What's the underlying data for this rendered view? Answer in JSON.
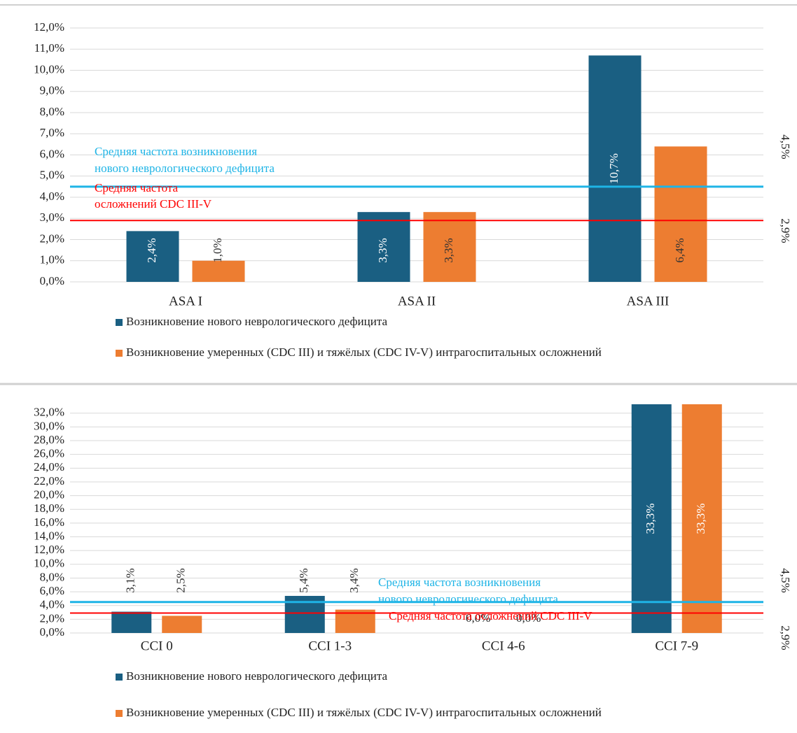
{
  "chart_data": [
    {
      "type": "bar",
      "categories": [
        "ASA I",
        "ASA II",
        "ASA III"
      ],
      "series": [
        {
          "name": "Возникновение нового неврологического дефицита",
          "color": "#1a5f82",
          "values": [
            2.4,
            3.3,
            10.7
          ],
          "value_labels": [
            "2,4%",
            "3,3%",
            "10,7%"
          ]
        },
        {
          "name": "Возникновение умеренных (CDC III) и тяжёлых (CDC IV-V) интрагоспитальных осложнений",
          "color": "#ed7d31",
          "values": [
            1.0,
            3.3,
            6.4
          ],
          "value_labels": [
            "1,0%",
            "3,3%",
            "6,4%"
          ]
        }
      ],
      "ylim": [
        0,
        12
      ],
      "yticks": [
        {
          "value": 0,
          "label": "0,0%"
        },
        {
          "value": 1,
          "label": "1,0%"
        },
        {
          "value": 2,
          "label": "2,0%"
        },
        {
          "value": 3,
          "label": "3,0%"
        },
        {
          "value": 4,
          "label": "4,0%"
        },
        {
          "value": 5,
          "label": "5,0%"
        },
        {
          "value": 6,
          "label": "6,0%"
        },
        {
          "value": 7,
          "label": "7,0%"
        },
        {
          "value": 8,
          "label": "8,0%"
        },
        {
          "value": 9,
          "label": "9,0%"
        },
        {
          "value": 10,
          "label": "10,0%"
        },
        {
          "value": 11,
          "label": "11,0%"
        },
        {
          "value": 12,
          "label": "12,0%"
        }
      ],
      "grid": true,
      "reference_lines": [
        {
          "value": 4.5,
          "value_label": "4,5%",
          "color": "#1eb4e6",
          "label_lines": [
            "Средняя частота возникновения",
            "нового неврологического дефицита"
          ]
        },
        {
          "value": 2.9,
          "value_label": "2,9%",
          "color": "#ff0000",
          "label_lines": [
            "Средняя частота",
            "осложнений CDC III-V"
          ]
        }
      ]
    },
    {
      "type": "bar",
      "categories": [
        "CCI 0",
        "CCI 1-3",
        "CCI 4-6",
        "CCI 7-9"
      ],
      "series": [
        {
          "name": "Возникновение нового неврологического дефицита",
          "color": "#1a5f82",
          "values": [
            3.1,
            5.4,
            0.0,
            33.3
          ],
          "value_labels": [
            "3,1%",
            "5,4%",
            "0,0%",
            "33,3%"
          ]
        },
        {
          "name": "Возникновение умеренных (CDC III) и тяжёлых (CDC IV-V) интрагоспитальных осложнений",
          "color": "#ed7d31",
          "values": [
            2.5,
            3.4,
            0.0,
            33.3
          ],
          "value_labels": [
            "2,5%",
            "3,4%",
            "0,0%",
            "33,3%"
          ]
        }
      ],
      "ylim": [
        0,
        33.3
      ],
      "yticks": [
        {
          "value": 0,
          "label": "0,0%"
        },
        {
          "value": 2,
          "label": "2,0%"
        },
        {
          "value": 4,
          "label": "4,0%"
        },
        {
          "value": 6,
          "label": "6,0%"
        },
        {
          "value": 8,
          "label": "8,0%"
        },
        {
          "value": 10,
          "label": "10,0%"
        },
        {
          "value": 12,
          "label": "12,0%"
        },
        {
          "value": 14,
          "label": "14,0%"
        },
        {
          "value": 16,
          "label": "16,0%"
        },
        {
          "value": 18,
          "label": "18,0%"
        },
        {
          "value": 20,
          "label": "20,0%"
        },
        {
          "value": 22,
          "label": "22,0%"
        },
        {
          "value": 24,
          "label": "24,0%"
        },
        {
          "value": 26,
          "label": "26,0%"
        },
        {
          "value": 28,
          "label": "28,0%"
        },
        {
          "value": 30,
          "label": "30,0%"
        },
        {
          "value": 32,
          "label": "32,0%"
        }
      ],
      "grid": true,
      "reference_lines": [
        {
          "value": 4.5,
          "value_label": "4,5%",
          "color": "#1eb4e6",
          "label_lines": [
            "Средняя частота возникновения",
            "нового неврологического дефицита"
          ]
        },
        {
          "value": 2.9,
          "value_label": "2,9%",
          "color": "#ff0000",
          "label_lines": [
            "Средняя частота осложнений CDC III-V"
          ]
        }
      ]
    }
  ]
}
